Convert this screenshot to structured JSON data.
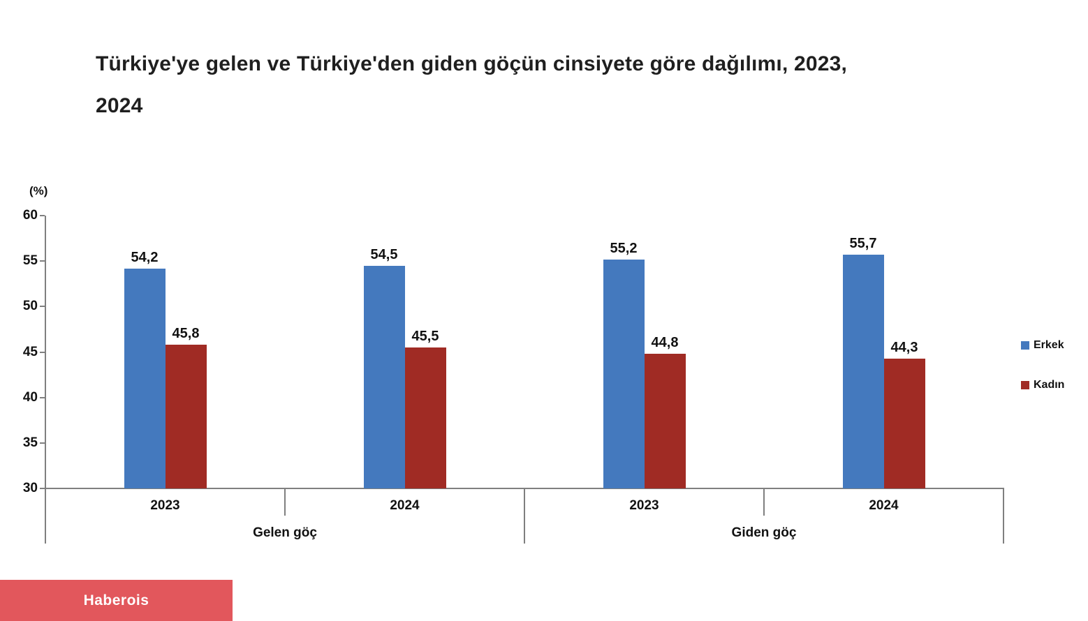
{
  "header": {
    "lines": [
      "Türkiye'ye gelen ve Türkiye'den giden göçün cinsiyete göre dağılımı, 2023,",
      "2024"
    ]
  },
  "chart_data": {
    "type": "bar",
    "title": "Türkiye'ye gelen ve Türkiye'den giden göçün cinsiyete göre dağılımı, 2023, 2024",
    "unit_label": "(%)",
    "ylim": [
      30,
      60
    ],
    "yticks": [
      "60",
      "55",
      "50",
      "45",
      "40",
      "35",
      "30"
    ],
    "grid": false,
    "legend_position": "right",
    "group_labels": [
      "Gelen göç",
      "Giden göç"
    ],
    "categories": [
      "2023",
      "2024",
      "2023",
      "2024"
    ],
    "series": [
      {
        "name": "Erkek",
        "color": "#4479BE",
        "values": [
          54.2,
          54.5,
          55.2,
          55.7
        ],
        "value_labels": [
          "54,2",
          "54,5",
          "55,2",
          "55,7"
        ]
      },
      {
        "name": "Kadın",
        "color": "#A02B24",
        "values": [
          45.8,
          45.5,
          44.8,
          44.3
        ],
        "value_labels": [
          "45,8",
          "45,5",
          "44,8",
          "44,3"
        ]
      }
    ],
    "axis_color": "#7f7f7f"
  },
  "footer": {
    "brand_label": "Haberois",
    "brand_color": "#E2575C"
  }
}
